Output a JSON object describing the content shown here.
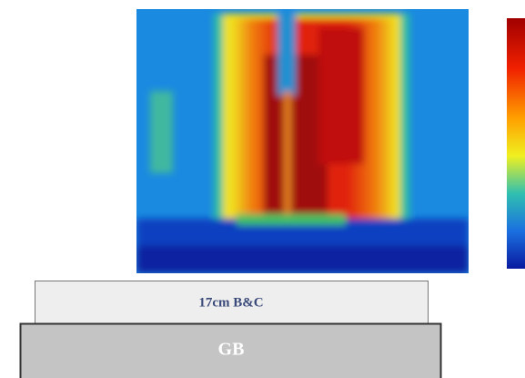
{
  "labels": {
    "top_box": "17cm B&C",
    "bottom_box": "GB"
  }
}
